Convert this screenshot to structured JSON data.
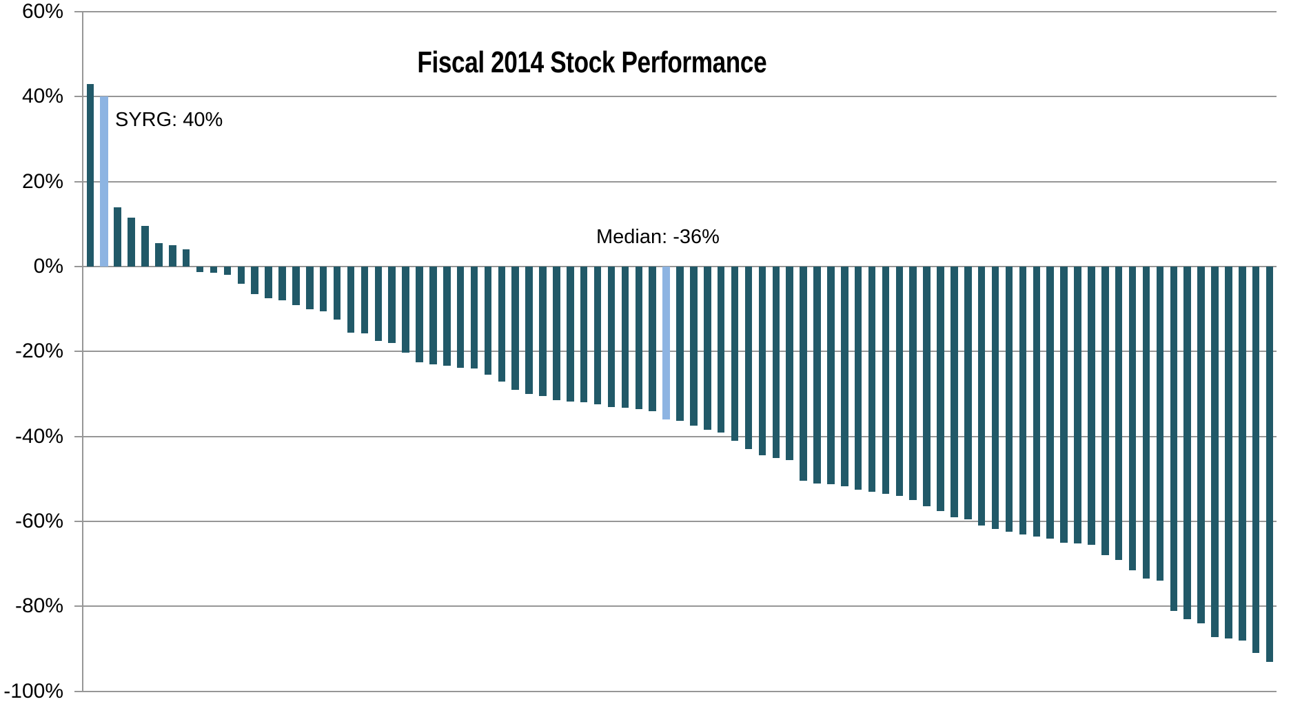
{
  "colors": {
    "bar": "#215968",
    "highlight": "#8DB4E2",
    "gridline": "#969696",
    "text": "#000000",
    "background": "#FFFFFF"
  },
  "y_axis": {
    "tick_labels": [
      "60%",
      "40%",
      "20%",
      "0%",
      "-20%",
      "-40%",
      "-60%",
      "-80%",
      "-100%"
    ]
  },
  "chart_data": {
    "type": "bar",
    "title": "Fiscal 2014 Stock Performance",
    "xlabel": "",
    "ylabel": "",
    "ylim": [
      -100,
      60
    ],
    "ytick_step": 20,
    "grid": true,
    "legend": false,
    "x_axis_labels_visible": false,
    "unit": "%",
    "values": [
      43,
      40,
      14,
      11.5,
      9.5,
      5.5,
      5,
      4,
      -1.3,
      -1.4,
      -2,
      -4,
      -6.5,
      -7.5,
      -8,
      -9,
      -10,
      -10.5,
      -12.5,
      -15.5,
      -15.7,
      -17.5,
      -18,
      -20.3,
      -22.5,
      -23,
      -23.3,
      -23.8,
      -24,
      -25.5,
      -27,
      -29,
      -30,
      -30.5,
      -31.5,
      -31.8,
      -32,
      -32.5,
      -33,
      -33.2,
      -33.6,
      -34,
      -36,
      -36.3,
      -37.5,
      -38.5,
      -39,
      -41,
      -43,
      -44.5,
      -45,
      -45.5,
      -50.5,
      -51,
      -51.3,
      -51.8,
      -52.5,
      -53,
      -53.5,
      -54,
      -55,
      -56.5,
      -57.5,
      -59,
      -59.5,
      -61,
      -61.8,
      -62.5,
      -63,
      -63.5,
      -64,
      -65,
      -65.2,
      -65.5,
      -68,
      -69,
      -71.5,
      -73.5,
      -74,
      -81,
      -83,
      -84,
      -87.3,
      -87.5,
      -88,
      -91,
      -93
    ],
    "highlighted_bars": [
      {
        "index": 1,
        "label": "SYRG: 40%",
        "value": 40
      },
      {
        "index": 42,
        "label": "Median: -36%",
        "value": -36
      }
    ]
  }
}
